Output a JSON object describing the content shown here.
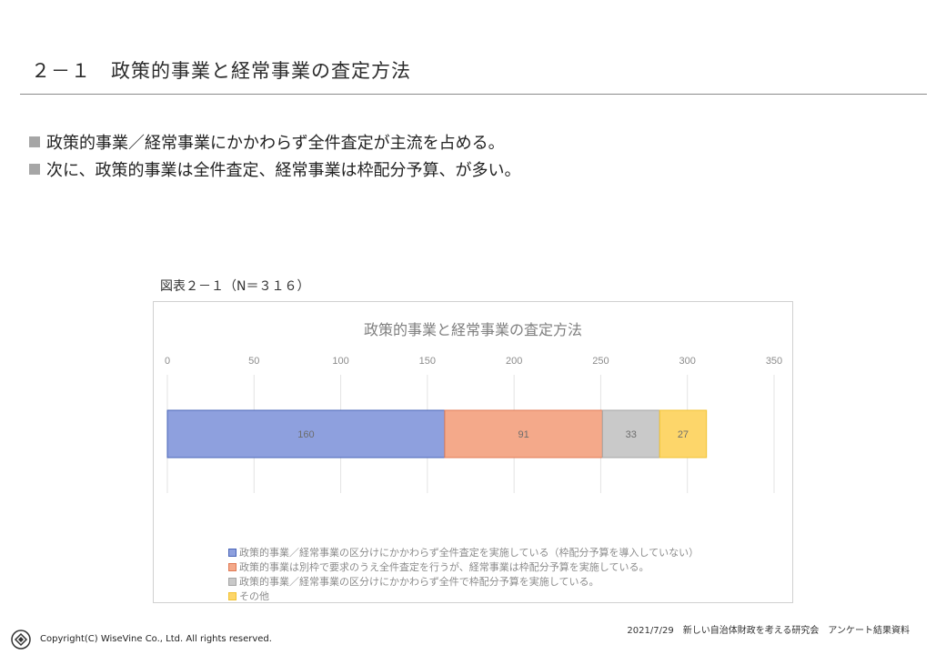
{
  "slide": {
    "title": "２－１　政策的事業と経常事業の査定方法",
    "bullets": [
      "政策的事業／経常事業にかかわらず全件査定が主流を占める。",
      "次に、政策的事業は全件査定、経常事業は枠配分予算、が多い。"
    ],
    "figure_caption": "図表２－１（N＝３１６）"
  },
  "chart_data": {
    "type": "bar",
    "orientation": "horizontal",
    "stacked": true,
    "title": "政策的事業と経常事業の査定方法",
    "xlim": [
      0,
      350
    ],
    "ticks": [
      0,
      50,
      100,
      150,
      200,
      250,
      300,
      350
    ],
    "tick_labels": [
      "0",
      "50",
      "100",
      "150",
      "200",
      "250",
      "300",
      "350"
    ],
    "grid": true,
    "legend_position": "bottom",
    "series": [
      {
        "name": "政策的事業／経常事業の区分けにかかわらず全件査定を実施している（枠配分予算を導入していない）",
        "values": [
          160
        ],
        "labels": [
          "160"
        ],
        "color": "#8ea0de",
        "stroke": "#4a66b8"
      },
      {
        "name": "政策的事業は別枠で要求のうえ全件査定を行うが、経常事業は枠配分予算を実施している。",
        "values": [
          91
        ],
        "labels": [
          "91"
        ],
        "color": "#f4a98a",
        "stroke": "#e07a55"
      },
      {
        "name": "政策的事業／経常事業の区分けにかかわらず全件で枠配分予算を実施している。",
        "values": [
          33
        ],
        "labels": [
          "33"
        ],
        "color": "#c9c9c9",
        "stroke": "#a5a5a5"
      },
      {
        "name": "その他",
        "values": [
          27
        ],
        "labels": [
          "27"
        ],
        "color": "#fdd66a",
        "stroke": "#f1c232"
      }
    ]
  },
  "footer": {
    "date_note": "2021/7/29　新しい自治体財政を考える研究会　アンケート結果資料",
    "copyright": "Copyright(C) WiseVine Co., Ltd. All rights reserved."
  }
}
